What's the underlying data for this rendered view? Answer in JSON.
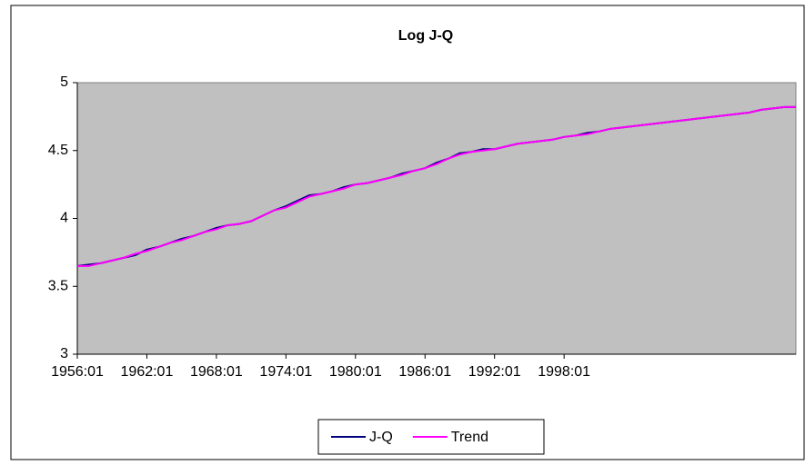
{
  "chart_data": {
    "type": "line",
    "title": "Log J-Q",
    "categories": [
      "1956:01",
      null,
      null,
      null,
      null,
      null,
      "1962:01",
      null,
      null,
      null,
      null,
      null,
      "1968:01",
      null,
      null,
      null,
      null,
      null,
      "1974:01",
      null,
      null,
      null,
      null,
      null,
      "1980:01",
      null,
      null,
      null,
      null,
      null,
      "1986:01",
      null,
      null,
      null,
      null,
      null,
      "1992:01",
      null,
      null,
      null,
      null,
      null,
      "1998:01",
      null,
      null,
      null,
      null,
      null,
      null,
      null,
      null,
      null,
      null,
      null,
      null,
      null,
      null,
      null,
      null,
      null,
      null,
      null,
      null
    ],
    "series": [
      {
        "name": "J-Q",
        "color": "#000080",
        "values": [
          3.65,
          3.66,
          3.67,
          3.69,
          3.71,
          3.73,
          3.77,
          3.79,
          3.82,
          3.85,
          3.87,
          3.9,
          3.93,
          3.95,
          3.96,
          3.98,
          4.02,
          4.06,
          4.09,
          4.13,
          4.17,
          4.18,
          4.2,
          4.23,
          4.25,
          4.26,
          4.28,
          4.3,
          4.33,
          4.35,
          4.37,
          4.41,
          4.44,
          4.48,
          4.49,
          4.51,
          4.51,
          4.53,
          4.55,
          4.56,
          4.57,
          4.58,
          4.6,
          4.61,
          4.63,
          4.64,
          4.66,
          4.67,
          4.68,
          4.69,
          4.7,
          4.71,
          4.72,
          4.73,
          4.74,
          4.75,
          4.76,
          4.77,
          4.78,
          4.8,
          4.81,
          4.82,
          4.82
        ]
      },
      {
        "name": "Trend",
        "color": "#ff00ff",
        "values": [
          3.65,
          3.65,
          3.67,
          3.69,
          3.71,
          3.74,
          3.76,
          3.79,
          3.82,
          3.84,
          3.87,
          3.9,
          3.92,
          3.95,
          3.96,
          3.98,
          4.02,
          4.06,
          4.08,
          4.12,
          4.16,
          4.18,
          4.2,
          4.22,
          4.25,
          4.26,
          4.28,
          4.3,
          4.32,
          4.35,
          4.37,
          4.4,
          4.44,
          4.47,
          4.49,
          4.5,
          4.51,
          4.53,
          4.55,
          4.56,
          4.57,
          4.58,
          4.6,
          4.61,
          4.62,
          4.64,
          4.66,
          4.67,
          4.68,
          4.69,
          4.7,
          4.71,
          4.72,
          4.73,
          4.74,
          4.75,
          4.76,
          4.77,
          4.78,
          4.8,
          4.81,
          4.82,
          4.82
        ]
      }
    ],
    "ylim": [
      3,
      5
    ],
    "yticks": [
      3,
      3.5,
      4,
      4.5,
      5
    ],
    "grid": false,
    "plot_background": "#c0c0c0",
    "legend": "bottom"
  }
}
